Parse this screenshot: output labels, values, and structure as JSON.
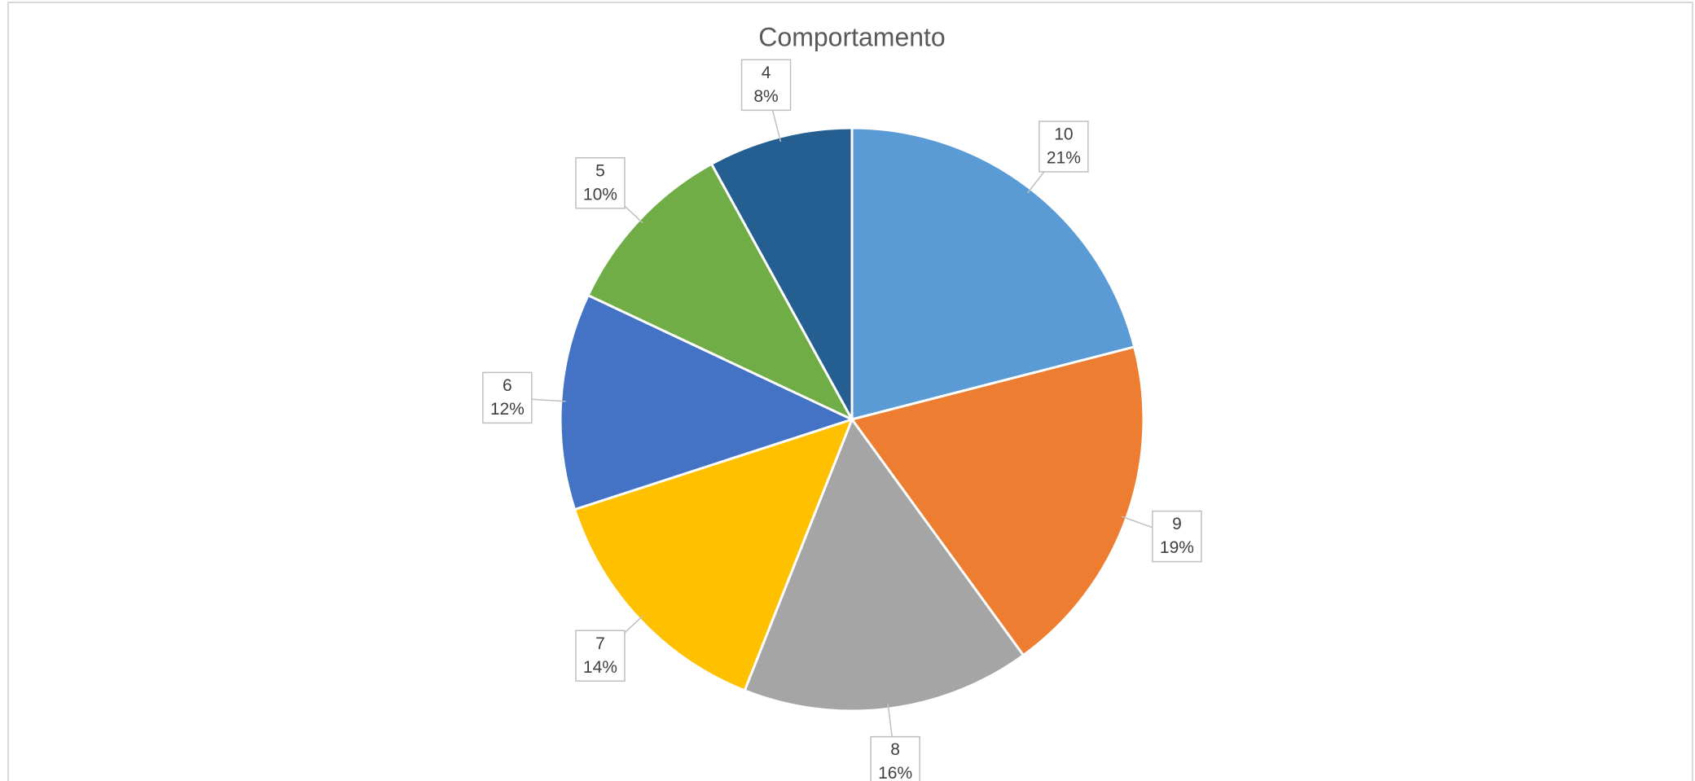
{
  "chart_data": {
    "type": "pie",
    "title": "Comportamento",
    "categories": [
      "10",
      "9",
      "8",
      "7",
      "6",
      "5",
      "4"
    ],
    "values": [
      21,
      19,
      16,
      14,
      12,
      10,
      8
    ],
    "value_labels": [
      "21%",
      "19%",
      "16%",
      "14%",
      "12%",
      "10%",
      "8%"
    ],
    "colors": [
      "#5b9bd5",
      "#ed7d31",
      "#a5a5a5",
      "#ffc000",
      "#4472c4",
      "#70ad47",
      "#255e91"
    ]
  }
}
